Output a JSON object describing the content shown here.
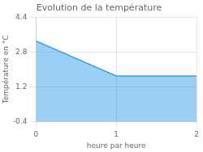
{
  "chart_data": {
    "type": "area",
    "title": "Evolution de la température",
    "xlabel": "heure par heure",
    "ylabel": "Température en °C",
    "x": [
      0,
      1,
      2
    ],
    "values": [
      3.3,
      1.7,
      1.7
    ],
    "xlim": [
      0,
      2
    ],
    "ylim": [
      -0.4,
      4.4
    ],
    "xticks": [
      0,
      1,
      2
    ],
    "yticks": [
      -0.4,
      1.2,
      2.8,
      4.4
    ],
    "grid": true
  }
}
